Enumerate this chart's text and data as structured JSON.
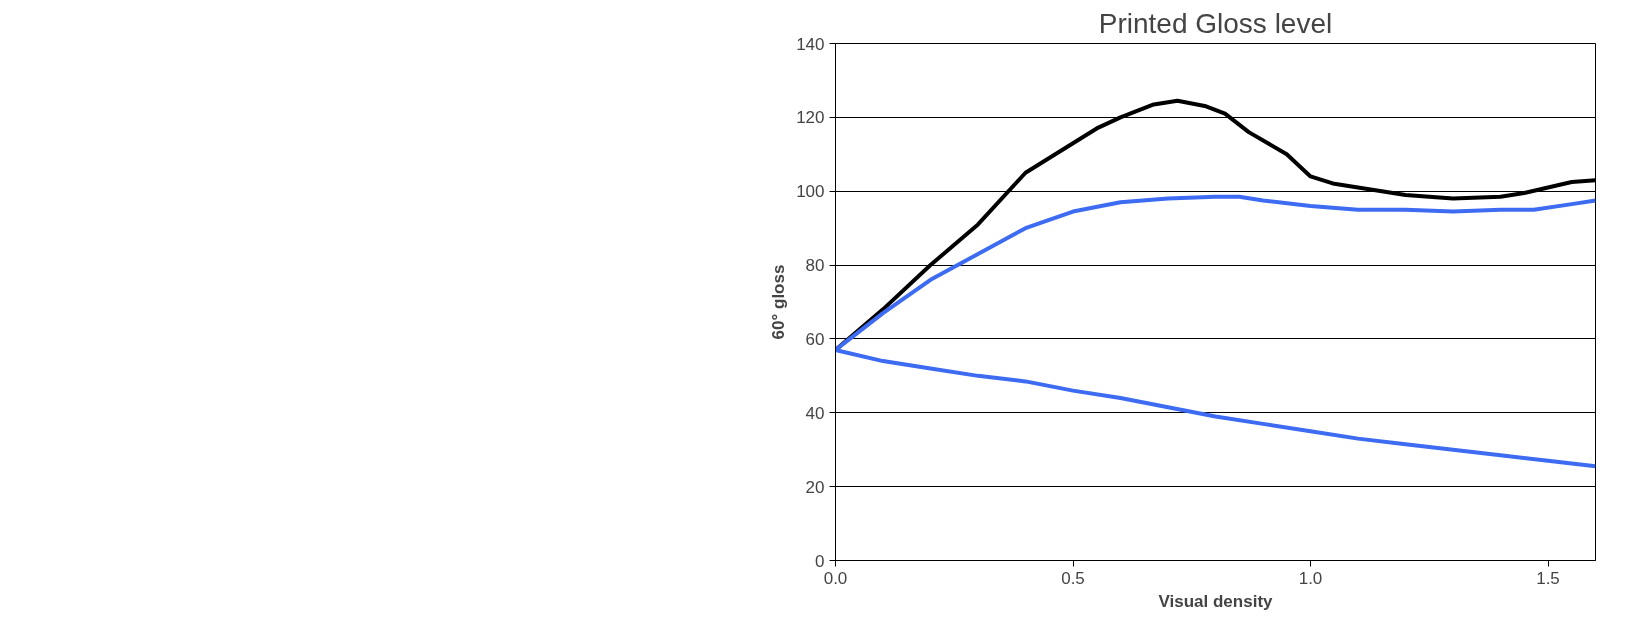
{
  "chart_data": {
    "type": "line",
    "title": "Printed Gloss level",
    "xlabel": "Visual density",
    "ylabel": "60° gloss",
    "xlim": [
      0,
      1.6
    ],
    "xticks": [
      {
        "value": 0,
        "label": "0.0"
      },
      {
        "value": 0.5,
        "label": "0.5"
      },
      {
        "value": 1,
        "label": "1.0"
      },
      {
        "value": 1.5,
        "label": "1.5"
      }
    ],
    "ylim": [
      0,
      140
    ],
    "yticks": [
      0,
      20,
      40,
      60,
      80,
      100,
      120,
      140
    ],
    "grid": "y",
    "marker": "none",
    "line_style": "solid",
    "series": [
      {
        "color": "#000000",
        "x": [
          0,
          0.1,
          0.2,
          0.3,
          0.4,
          0.5,
          0.55,
          0.6,
          0.67,
          0.72,
          0.78,
          0.82,
          0.87,
          0.95,
          1.0,
          1.05,
          1.1,
          1.15,
          1.2,
          1.3,
          1.4,
          1.45,
          1.5,
          1.55,
          1.6
        ],
        "values": [
          57,
          68,
          80,
          91,
          105,
          113,
          117,
          120,
          123.5,
          124.5,
          123,
          121,
          116,
          110,
          104,
          102,
          101,
          100,
          99,
          98,
          98.5,
          99.5,
          101,
          102.5,
          103
        ]
      },
      {
        "color": "#3d6bf2",
        "x": [
          0,
          0.1,
          0.2,
          0.3,
          0.4,
          0.5,
          0.6,
          0.7,
          0.8,
          0.85,
          0.9,
          1.0,
          1.1,
          1.2,
          1.3,
          1.4,
          1.47,
          1.55,
          1.6
        ],
        "values": [
          57,
          67,
          76,
          83,
          90,
          94.5,
          97,
          98,
          98.5,
          98.5,
          97.5,
          96,
          95,
          95,
          94.5,
          95,
          95,
          96.5,
          97.5
        ]
      },
      {
        "color": "#3d6bf2",
        "x": [
          0,
          0.1,
          0.2,
          0.3,
          0.4,
          0.5,
          0.6,
          0.7,
          0.8,
          0.9,
          1.0,
          1.1,
          1.2,
          1.3,
          1.4,
          1.5,
          1.6
        ],
        "values": [
          57,
          54,
          52,
          50,
          48.5,
          46,
          44,
          41.5,
          39,
          37,
          35,
          33,
          31.5,
          30,
          28.5,
          27,
          25.5
        ]
      }
    ]
  }
}
